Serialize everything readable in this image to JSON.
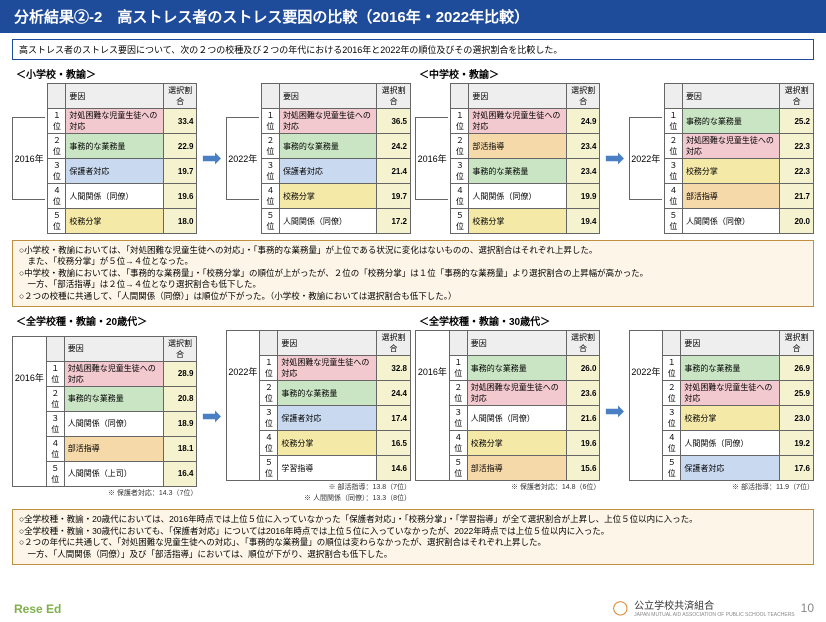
{
  "title": "分析結果②-2　高ストレス者のストレス要因の比較（2016年・2022年比較）",
  "subtitle": "高ストレス者のストレス要因について、次の２つの校種及び２つの年代における2016年と2022年の順位及びその選択割合を比較した。",
  "sections": {
    "topL": "＜小学校・教諭＞",
    "topR": "＜中学校・教諭＞",
    "botL": "＜全学校種・教諭・20歳代＞",
    "botR": "＜全学校種・教諭・30歳代＞"
  },
  "headers": {
    "factor": "要因",
    "pct": "選択割合"
  },
  "years": {
    "y2016": "2016年",
    "y2022": "2022年"
  },
  "ranks": [
    "１位",
    "２位",
    "３位",
    "４位",
    "５位"
  ],
  "tables": {
    "tl1": [
      [
        "対処困難な児童生徒への対応",
        "33.4",
        "c-pink"
      ],
      [
        "事務的な業務量",
        "22.9",
        "c-green"
      ],
      [
        "保護者対応",
        "19.7",
        "c-blue"
      ],
      [
        "人間関係（同僚）",
        "19.6",
        ""
      ],
      [
        "校務分掌",
        "18.0",
        "c-yellow"
      ]
    ],
    "tl2": [
      [
        "対処困難な児童生徒への対応",
        "36.5",
        "c-pink"
      ],
      [
        "事務的な業務量",
        "24.2",
        "c-green"
      ],
      [
        "保護者対応",
        "21.4",
        "c-blue"
      ],
      [
        "校務分掌",
        "19.7",
        "c-yellow"
      ],
      [
        "人間関係（同僚）",
        "17.2",
        ""
      ]
    ],
    "tr1": [
      [
        "対処困難な児童生徒への対応",
        "24.9",
        "c-pink"
      ],
      [
        "部活指導",
        "23.4",
        "c-orange"
      ],
      [
        "事務的な業務量",
        "23.4",
        "c-green"
      ],
      [
        "人間関係（同僚）",
        "19.9",
        ""
      ],
      [
        "校務分掌",
        "19.4",
        "c-yellow"
      ]
    ],
    "tr2": [
      [
        "事務的な業務量",
        "25.2",
        "c-green"
      ],
      [
        "対処困難な児童生徒への対応",
        "22.3",
        "c-pink"
      ],
      [
        "校務分掌",
        "22.3",
        "c-yellow"
      ],
      [
        "部活指導",
        "21.7",
        "c-orange"
      ],
      [
        "人間関係（同僚）",
        "20.0",
        ""
      ]
    ],
    "bl1": [
      [
        "対処困難な児童生徒への対応",
        "28.9",
        "c-pink"
      ],
      [
        "事務的な業務量",
        "20.8",
        "c-green"
      ],
      [
        "人間関係（同僚）",
        "18.9",
        ""
      ],
      [
        "部活指導",
        "18.1",
        "c-orange"
      ],
      [
        "人間関係（上司）",
        "16.4",
        ""
      ]
    ],
    "bl2": [
      [
        "対処困難な児童生徒への対応",
        "32.8",
        "c-pink"
      ],
      [
        "事務的な業務量",
        "24.4",
        "c-green"
      ],
      [
        "保護者対応",
        "17.4",
        "c-blue"
      ],
      [
        "校務分掌",
        "16.5",
        "c-yellow"
      ],
      [
        "学習指導",
        "14.6",
        ""
      ]
    ],
    "br1": [
      [
        "事務的な業務量",
        "26.0",
        "c-green"
      ],
      [
        "対処困難な児童生徒への対応",
        "23.6",
        "c-pink"
      ],
      [
        "人間関係（同僚）",
        "21.6",
        ""
      ],
      [
        "校務分掌",
        "19.6",
        "c-yellow"
      ],
      [
        "部活指導",
        "15.6",
        "c-orange"
      ]
    ],
    "br2": [
      [
        "事務的な業務量",
        "26.9",
        "c-green"
      ],
      [
        "対処困難な児童生徒への対応",
        "25.9",
        "c-pink"
      ],
      [
        "校務分掌",
        "23.0",
        "c-yellow"
      ],
      [
        "人間関係（同僚）",
        "19.2",
        ""
      ],
      [
        "保護者対応",
        "17.6",
        "c-blue"
      ]
    ]
  },
  "footnotes": {
    "bl1": "※ 保護者対応：14.3（7位）",
    "bl2a": "※ 部活指導：13.8（7位）",
    "bl2b": "※ 人間関係（同僚）：13.3（8位）",
    "br1": "※ 保護者対応：14.8（6位）",
    "br2": "※ 部活指導：11.9（7位）"
  },
  "note1": [
    "○小学校・教諭においては、「対処困難な児童生徒への対応」・「事務的な業務量」が上位である状況に変化はないものの、選択割合はそれぞれ上昇した。",
    "　また、「校務分掌」が５位→４位となった。",
    "○中学校・教諭においては、「事務的な業務量」・「校務分掌」の順位が上がったが、２位の「校務分掌」は１位「事務的な業務量」より選択割合の上昇幅が高かった。",
    "　一方、「部活指導」は２位→４位となり選択割合も低下した。",
    "○２つの校種に共通して、「人間関係（同僚）」は順位が下がった。（小学校・教諭においては選択割合も低下した。）"
  ],
  "note2": [
    "○全学校種・教諭・20歳代においては、2016年時点では上位５位に入っていなかった「保護者対応」・「校務分掌」・「学習指導」が全て選択割合が上昇し、上位５位以内に入った。",
    "○全学校種・教諭・30歳代においても、「保護者対応」については2016年時点では上位５位に入っていなかったが、2022年時点では上位５位以内に入った。",
    "○２つの年代に共通して、「対処困難な児童生徒への対応」、「事務的な業務量」の順位は変わらなかったが、選択割合はそれぞれ上昇した。",
    "　一方、「人間関係（同僚）」及び「部活指導」においては、順位が下がり、選択割合も低下した。"
  ],
  "footer": {
    "org": "公立学校共済組合",
    "sub": "JAPAN MUTUAL AID ASSOCIATION OF PUBLIC SCHOOL TEACHERS",
    "page": "10",
    "reseed": "Rese Ed"
  }
}
